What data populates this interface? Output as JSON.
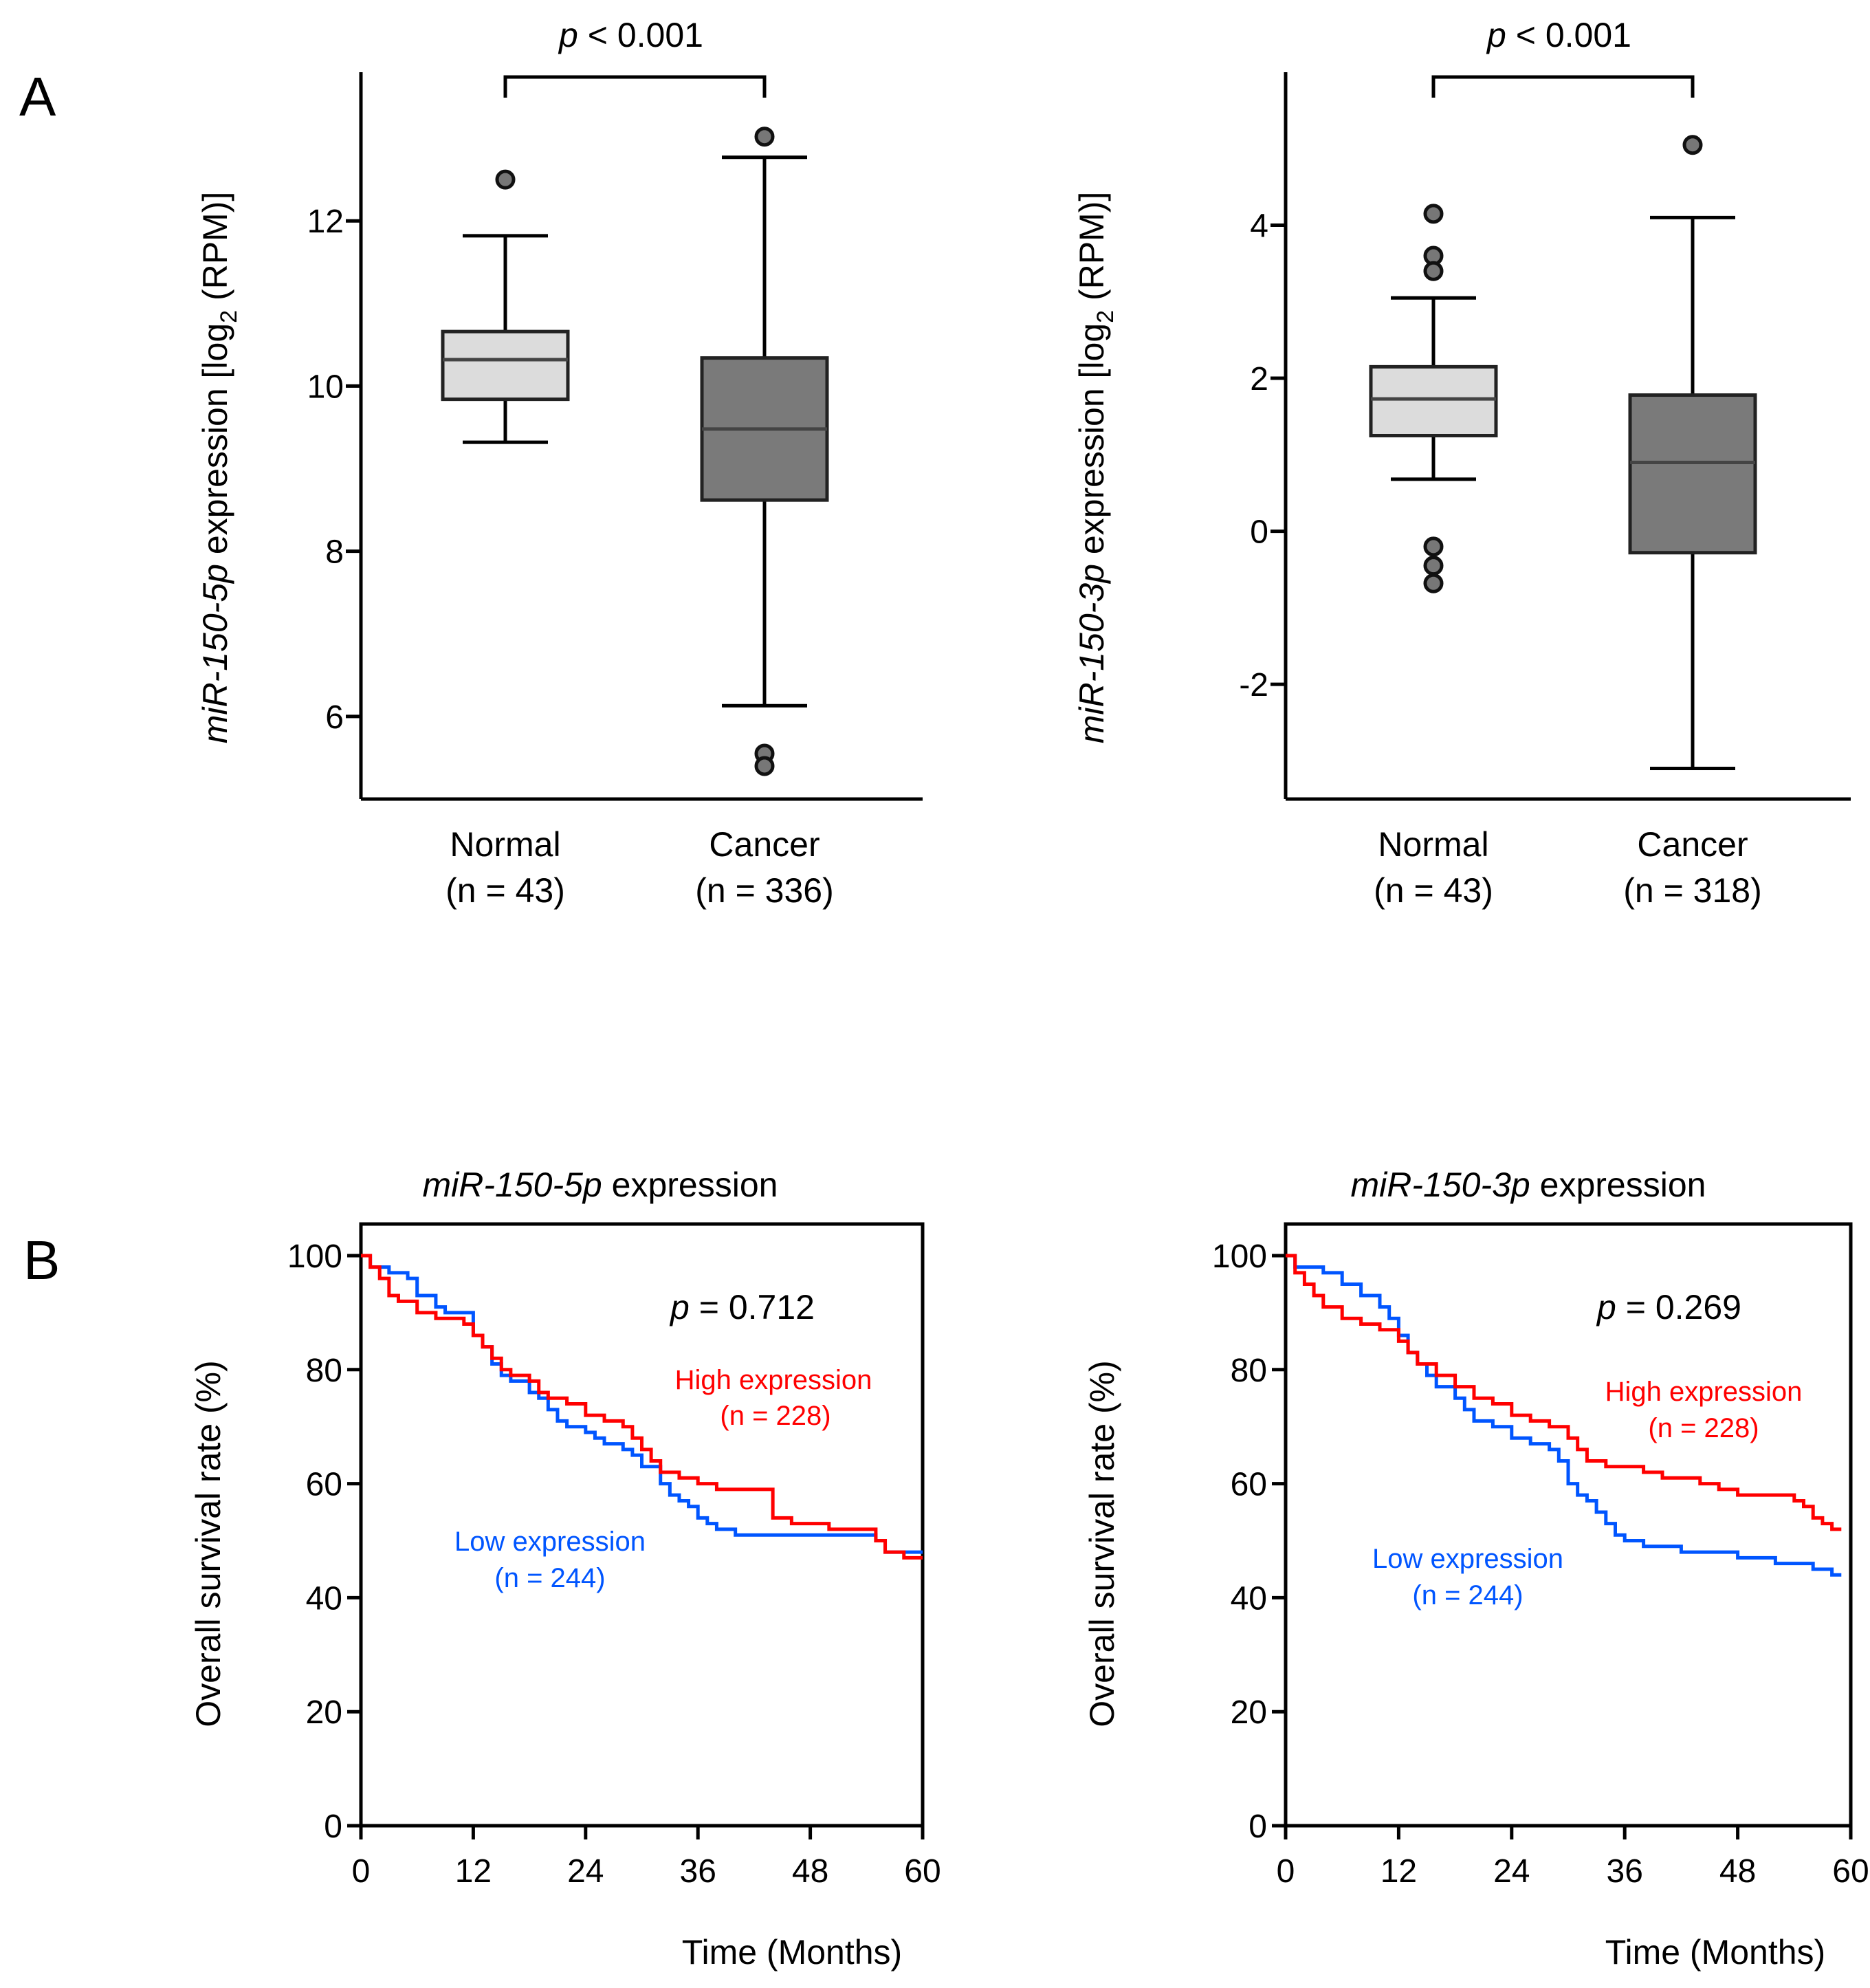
{
  "panel_labels": {
    "a": "A",
    "b": "B"
  },
  "colors": {
    "normal_box": "#dcdcdc",
    "cancer_box": "#7a7a7a",
    "high_expression": "#ff0000",
    "low_expression": "#0055ff"
  },
  "chart_data": [
    {
      "type": "box",
      "id": "A1",
      "ylabel_italic": "miR-150-5p",
      "ylabel_rest": " expression [log",
      "ylabel_sub": "2",
      "ylabel_end": " (RPM)]",
      "ylim": [
        5.0,
        13.8
      ],
      "yticks": [
        6,
        8,
        10,
        12
      ],
      "yticks_labels": [
        "6",
        "8",
        "10",
        "12"
      ],
      "pvalue_italic": "p",
      "pvalue_rest": " < 0.001",
      "groups": [
        {
          "name": "Normal",
          "n_label": "(n = 43)",
          "color": "#dcdcdc",
          "whisker_low": 9.32,
          "q1": 9.84,
          "median": 10.32,
          "q3": 10.66,
          "whisker_high": 11.82,
          "outliers": [
            12.5
          ]
        },
        {
          "name": "Cancer",
          "n_label": "(n = 336)",
          "color": "#7a7a7a",
          "whisker_low": 6.13,
          "q1": 8.62,
          "median": 9.48,
          "q3": 10.34,
          "whisker_high": 12.77,
          "outliers": [
            13.02,
            5.55,
            5.4
          ]
        }
      ]
    },
    {
      "type": "box",
      "id": "A2",
      "ylabel_italic": "miR-150-3p",
      "ylabel_rest": " expression [log",
      "ylabel_sub": "2",
      "ylabel_end": " (RPM)]",
      "ylim": [
        -3.5,
        6.0
      ],
      "yticks": [
        -2,
        0,
        2,
        4
      ],
      "yticks_labels": [
        "-2",
        "0",
        "2",
        "4"
      ],
      "pvalue_italic": "p",
      "pvalue_rest": " < 0.001",
      "groups": [
        {
          "name": "Normal",
          "n_label": "(n = 43)",
          "color": "#dcdcdc",
          "whisker_low": 0.68,
          "q1": 1.25,
          "median": 1.73,
          "q3": 2.15,
          "whisker_high": 3.05,
          "outliers": [
            4.15,
            3.6,
            3.4,
            -0.2,
            -0.45,
            -0.68
          ]
        },
        {
          "name": "Cancer",
          "n_label": "(n = 318)",
          "color": "#7a7a7a",
          "whisker_low": -3.1,
          "q1": -0.28,
          "median": 0.9,
          "q3": 1.78,
          "whisker_high": 4.1,
          "outliers": [
            5.05
          ]
        }
      ]
    },
    {
      "type": "line",
      "id": "B1",
      "title_italic": "miR-150-5p",
      "title_rest": " expression",
      "xlabel": "Time (Months)",
      "ylabel": "Overall survival rate (%)",
      "xlim": [
        0,
        60
      ],
      "ylim": [
        0,
        100
      ],
      "xticks_labels": [
        "0",
        "12",
        "24",
        "36",
        "48",
        "60"
      ],
      "yticks_labels": [
        "0",
        "20",
        "40",
        "60",
        "80",
        "100"
      ],
      "pvalue_italic": "p",
      "pvalue_rest": " = 0.712",
      "series": [
        {
          "name": "High expression",
          "n_label": "(n = 228)",
          "color": "#ff0000",
          "x": [
            0,
            1,
            2,
            3,
            4,
            6,
            8,
            10,
            11,
            12,
            13,
            14,
            15,
            16,
            18,
            19,
            20,
            22,
            24,
            26,
            28,
            29,
            30,
            31,
            32,
            34,
            36,
            38,
            40,
            44,
            45,
            46,
            48,
            50,
            54,
            55,
            56,
            58,
            60
          ],
          "y": [
            100,
            98,
            96,
            93,
            92,
            90,
            89,
            89,
            88,
            86,
            84,
            82,
            80,
            79,
            78,
            76,
            75,
            74,
            72,
            71,
            70,
            68,
            66,
            64,
            62,
            61,
            60,
            59,
            59,
            54,
            54,
            53,
            53,
            52,
            52,
            50,
            48,
            47,
            47
          ]
        },
        {
          "name": "Low expression",
          "n_label": "(n = 244)",
          "color": "#0055ff",
          "x": [
            0,
            1,
            2,
            3,
            4,
            5,
            6,
            8,
            9,
            10,
            12,
            13,
            14,
            15,
            16,
            18,
            19,
            20,
            21,
            22,
            24,
            25,
            26,
            28,
            29,
            30,
            32,
            33,
            34,
            35,
            36,
            37,
            38,
            40,
            48,
            54,
            55,
            56,
            60
          ],
          "y": [
            100,
            98,
            98,
            97,
            97,
            96,
            93,
            91,
            90,
            90,
            86,
            84,
            81,
            79,
            78,
            76,
            75,
            73,
            71,
            70,
            69,
            68,
            67,
            66,
            65,
            63,
            60,
            58,
            57,
            56,
            54,
            53,
            52,
            51,
            51,
            51,
            50,
            48,
            48
          ]
        }
      ]
    },
    {
      "type": "line",
      "id": "B2",
      "title_italic": "miR-150-3p",
      "title_rest": " expression",
      "xlabel": "Time (Months)",
      "ylabel": "Overall survival rate (%)",
      "xlim": [
        0,
        60
      ],
      "ylim": [
        0,
        100
      ],
      "xticks_labels": [
        "0",
        "12",
        "24",
        "36",
        "48",
        "60"
      ],
      "yticks_labels": [
        "0",
        "20",
        "40",
        "60",
        "80",
        "100"
      ],
      "pvalue_italic": "p",
      "pvalue_rest": " = 0.269",
      "series": [
        {
          "name": "High expression",
          "n_label": "(n = 228)",
          "color": "#ff0000",
          "x": [
            0,
            1,
            2,
            3,
            4,
            6,
            8,
            10,
            12,
            13,
            14,
            16,
            18,
            20,
            22,
            24,
            26,
            28,
            30,
            31,
            32,
            34,
            36,
            38,
            40,
            44,
            46,
            48,
            50,
            52,
            54,
            55,
            56,
            57,
            58,
            59
          ],
          "y": [
            100,
            97,
            95,
            93,
            91,
            89,
            88,
            87,
            85,
            83,
            81,
            79,
            77,
            75,
            74,
            72,
            71,
            70,
            68,
            66,
            64,
            63,
            63,
            62,
            61,
            60,
            59,
            58,
            58,
            58,
            57,
            56,
            54,
            53,
            52,
            52
          ]
        },
        {
          "name": "Low expression",
          "n_label": "(n = 244)",
          "color": "#0055ff",
          "x": [
            0,
            1,
            2,
            4,
            6,
            8,
            10,
            11,
            12,
            13,
            14,
            15,
            16,
            18,
            19,
            20,
            22,
            24,
            26,
            28,
            29,
            30,
            31,
            32,
            33,
            34,
            35,
            36,
            38,
            40,
            42,
            44,
            48,
            52,
            54,
            56,
            58,
            59
          ],
          "y": [
            100,
            98,
            98,
            97,
            95,
            93,
            91,
            89,
            86,
            83,
            81,
            79,
            77,
            75,
            73,
            71,
            70,
            68,
            67,
            66,
            64,
            60,
            58,
            57,
            55,
            53,
            51,
            50,
            49,
            49,
            48,
            48,
            47,
            46,
            46,
            45,
            44,
            44
          ]
        }
      ]
    }
  ]
}
